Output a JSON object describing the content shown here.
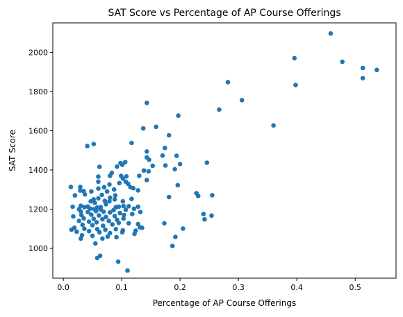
{
  "chart_data": {
    "type": "scatter",
    "title": "SAT Score vs Percentage of AP Course Offerings",
    "xlabel": "Percentage of AP Course Offerings",
    "ylabel": "SAT Score",
    "xlim": [
      -0.018,
      0.57
    ],
    "ylim": [
      848,
      2150
    ],
    "xticks": [
      0.0,
      0.1,
      0.2,
      0.3,
      0.4,
      0.5
    ],
    "xtick_labels": [
      "0.0",
      "0.1",
      "0.2",
      "0.3",
      "0.4",
      "0.5"
    ],
    "yticks": [
      1000,
      1200,
      1400,
      1600,
      1800,
      2000
    ],
    "ytick_labels": [
      "1000",
      "1200",
      "1400",
      "1600",
      "1800",
      "2000"
    ],
    "grid": false,
    "legend": "none",
    "marker_color": "#1f77b4",
    "points": [
      [
        0.458,
        2096
      ],
      [
        0.396,
        1970
      ],
      [
        0.478,
        1952
      ],
      [
        0.513,
        1920
      ],
      [
        0.537,
        1910
      ],
      [
        0.513,
        1868
      ],
      [
        0.282,
        1848
      ],
      [
        0.398,
        1833
      ],
      [
        0.306,
        1756
      ],
      [
        0.143,
        1742
      ],
      [
        0.267,
        1708
      ],
      [
        0.197,
        1677
      ],
      [
        0.36,
        1627
      ],
      [
        0.159,
        1620
      ],
      [
        0.137,
        1612
      ],
      [
        0.181,
        1577
      ],
      [
        0.052,
        1532
      ],
      [
        0.041,
        1522
      ],
      [
        0.117,
        1538
      ],
      [
        0.174,
        1512
      ],
      [
        0.143,
        1494
      ],
      [
        0.17,
        1473
      ],
      [
        0.194,
        1472
      ],
      [
        0.143,
        1464
      ],
      [
        0.147,
        1452
      ],
      [
        0.106,
        1440
      ],
      [
        0.098,
        1435
      ],
      [
        0.101,
        1426
      ],
      [
        0.175,
        1423
      ],
      [
        0.2,
        1430
      ],
      [
        0.246,
        1437
      ],
      [
        0.153,
        1421
      ],
      [
        0.092,
        1417
      ],
      [
        0.062,
        1416
      ],
      [
        0.138,
        1397
      ],
      [
        0.191,
        1404
      ],
      [
        0.146,
        1393
      ],
      [
        0.083,
        1385
      ],
      [
        0.08,
        1370
      ],
      [
        0.099,
        1370
      ],
      [
        0.108,
        1367
      ],
      [
        0.13,
        1370
      ],
      [
        0.102,
        1356
      ],
      [
        0.107,
        1340
      ],
      [
        0.06,
        1366
      ],
      [
        0.143,
        1348
      ],
      [
        0.06,
        1340
      ],
      [
        0.096,
        1333
      ],
      [
        0.111,
        1329
      ],
      [
        0.079,
        1326
      ],
      [
        0.196,
        1322
      ],
      [
        0.013,
        1313
      ],
      [
        0.029,
        1313
      ],
      [
        0.07,
        1312
      ],
      [
        0.115,
        1312
      ],
      [
        0.12,
        1307
      ],
      [
        0.06,
        1305
      ],
      [
        0.087,
        1300
      ],
      [
        0.029,
        1295
      ],
      [
        0.035,
        1292
      ],
      [
        0.048,
        1290
      ],
      [
        0.075,
        1290
      ],
      [
        0.128,
        1296
      ],
      [
        0.228,
        1281
      ],
      [
        0.02,
        1270
      ],
      [
        0.037,
        1275
      ],
      [
        0.066,
        1273
      ],
      [
        0.089,
        1270
      ],
      [
        0.255,
        1271
      ],
      [
        0.231,
        1267
      ],
      [
        0.181,
        1262
      ],
      [
        0.08,
        1258
      ],
      [
        0.06,
        1255
      ],
      [
        0.052,
        1250
      ],
      [
        0.088,
        1250
      ],
      [
        0.117,
        1252
      ],
      [
        0.047,
        1240
      ],
      [
        0.071,
        1242
      ],
      [
        0.079,
        1240
      ],
      [
        0.102,
        1240
      ],
      [
        0.054,
        1232
      ],
      [
        0.073,
        1225
      ],
      [
        0.03,
        1217
      ],
      [
        0.042,
        1213
      ],
      [
        0.016,
        1212
      ],
      [
        0.036,
        1210
      ],
      [
        0.058,
        1208
      ],
      [
        0.064,
        1210
      ],
      [
        0.09,
        1210
      ],
      [
        0.095,
        1212
      ],
      [
        0.103,
        1216
      ],
      [
        0.112,
        1215
      ],
      [
        0.128,
        1212
      ],
      [
        0.027,
        1200
      ],
      [
        0.046,
        1203
      ],
      [
        0.053,
        1200
      ],
      [
        0.064,
        1198
      ],
      [
        0.086,
        1195
      ],
      [
        0.107,
        1197
      ],
      [
        0.121,
        1202
      ],
      [
        0.03,
        1188
      ],
      [
        0.042,
        1185
      ],
      [
        0.056,
        1190
      ],
      [
        0.069,
        1187
      ],
      [
        0.08,
        1183
      ],
      [
        0.097,
        1180
      ],
      [
        0.132,
        1185
      ],
      [
        0.017,
        1163
      ],
      [
        0.031,
        1170
      ],
      [
        0.048,
        1172
      ],
      [
        0.061,
        1168
      ],
      [
        0.073,
        1160
      ],
      [
        0.088,
        1165
      ],
      [
        0.104,
        1170
      ],
      [
        0.118,
        1175
      ],
      [
        0.24,
        1175
      ],
      [
        0.254,
        1167
      ],
      [
        0.035,
        1153
      ],
      [
        0.052,
        1151
      ],
      [
        0.067,
        1148
      ],
      [
        0.092,
        1146
      ],
      [
        0.103,
        1152
      ],
      [
        0.242,
        1148
      ],
      [
        0.027,
        1140
      ],
      [
        0.044,
        1136
      ],
      [
        0.057,
        1133
      ],
      [
        0.078,
        1140
      ],
      [
        0.095,
        1130
      ],
      [
        0.112,
        1128
      ],
      [
        0.173,
        1128
      ],
      [
        0.128,
        1124
      ],
      [
        0.033,
        1120
      ],
      [
        0.05,
        1118
      ],
      [
        0.068,
        1115
      ],
      [
        0.084,
        1122
      ],
      [
        0.131,
        1108
      ],
      [
        0.135,
        1105
      ],
      [
        0.205,
        1101
      ],
      [
        0.019,
        1105
      ],
      [
        0.036,
        1100
      ],
      [
        0.058,
        1098
      ],
      [
        0.072,
        1095
      ],
      [
        0.09,
        1098
      ],
      [
        0.102,
        1092
      ],
      [
        0.124,
        1090
      ],
      [
        0.014,
        1095
      ],
      [
        0.023,
        1085
      ],
      [
        0.044,
        1088
      ],
      [
        0.062,
        1082
      ],
      [
        0.08,
        1078
      ],
      [
        0.101,
        1082
      ],
      [
        0.122,
        1074
      ],
      [
        0.032,
        1067
      ],
      [
        0.05,
        1064
      ],
      [
        0.076,
        1060
      ],
      [
        0.091,
        1057
      ],
      [
        0.03,
        1050
      ],
      [
        0.067,
        1050
      ],
      [
        0.192,
        1058
      ],
      [
        0.055,
        1025
      ],
      [
        0.187,
        1012
      ],
      [
        0.063,
        962
      ],
      [
        0.058,
        951
      ],
      [
        0.094,
        932
      ],
      [
        0.11,
        887
      ]
    ]
  }
}
